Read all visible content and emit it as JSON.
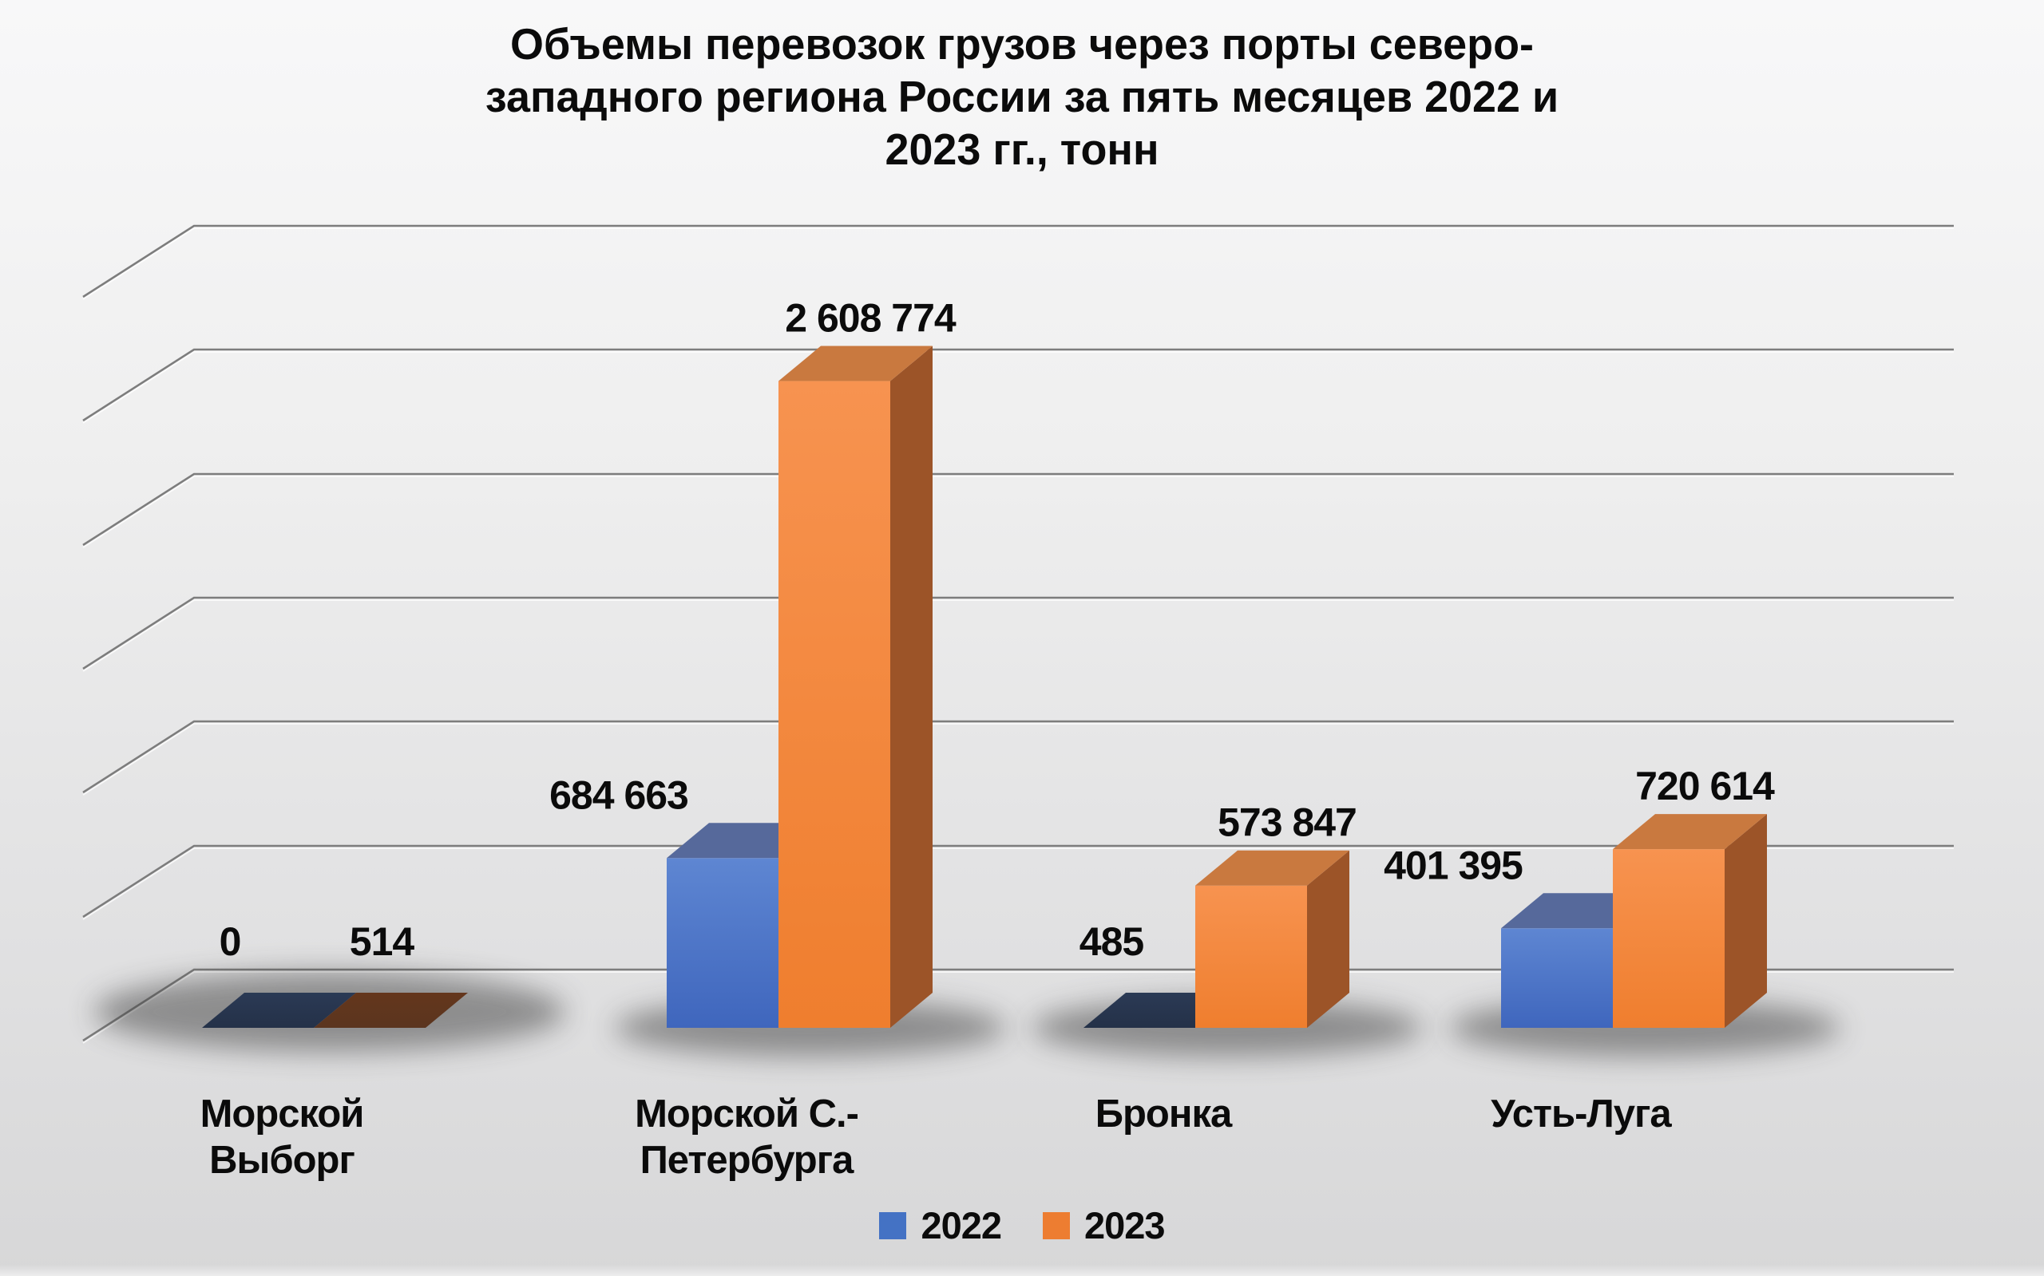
{
  "title_lines": [
    "Объемы перевозок грузов через порты северо-",
    "западного региона России за пять месяцев 2022 и",
    "2023 гг., тонн"
  ],
  "chart_data": {
    "type": "bar",
    "subtype": "3d-clustered-column",
    "title": "Объемы перевозок грузов через порты северо-западного региона России за пять месяцев 2022 и 2023 гг., тонн",
    "categories": [
      "Морской Выборг",
      "Морской С.-Петербурга",
      "Бронка",
      "Усть-Луга"
    ],
    "category_label_lines": [
      [
        "Морской",
        "Выборг"
      ],
      [
        "Морской С.-",
        "Петербурга"
      ],
      [
        "Бронка"
      ],
      [
        "Усть-Луга"
      ]
    ],
    "series": [
      {
        "name": "2022",
        "color": "#4472C4",
        "values": [
          0,
          684663,
          485,
          401395
        ],
        "labels": [
          "0",
          "684 663",
          "485",
          "401 395"
        ]
      },
      {
        "name": "2023",
        "color": "#ED7D31",
        "values": [
          514,
          2608774,
          573847,
          720614
        ],
        "labels": [
          "514",
          "2 608 774",
          "573 847",
          "720 614"
        ]
      }
    ],
    "ylim": [
      0,
      3000000
    ],
    "gridline_step": 500000,
    "gridline_count": 7,
    "value_axis_labels_visible": false,
    "grid": true,
    "legend_position": "bottom"
  },
  "colors": {
    "gridline": "#7d7d7d",
    "gridline_highlight": "#ffffff",
    "label_text": "#0b0b0b",
    "blue_front_top": "#5e86d2",
    "blue_front_bottom": "#3f66bd",
    "blue_top_face": "#56699b",
    "blue_side_face": "#33549e",
    "orange_front_top": "#f79350",
    "orange_front_bottom": "#ef7e2e",
    "orange_top_face": "#c9793f",
    "orange_side_face": "#9c5428",
    "flat_2022": "#243148",
    "flat_2023": "#5b351f",
    "shadow": "#3c3c3c"
  }
}
